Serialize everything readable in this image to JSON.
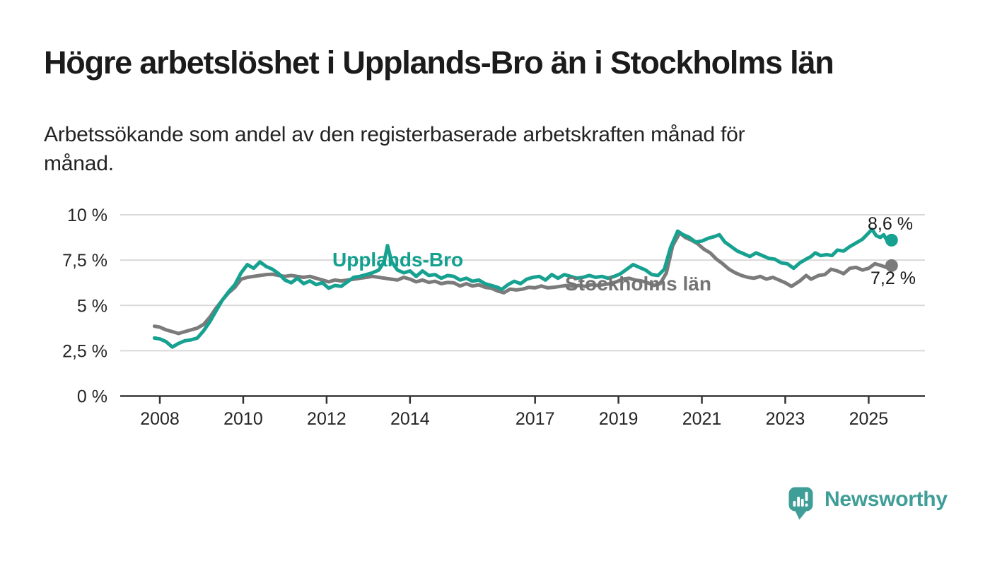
{
  "header": {
    "title": "Högre arbetslöshet i Upplands-Bro än i Stockholms län",
    "subtitle": "Arbetssökande som andel av den registerbaserade arbetskraften månad för månad.",
    "subtitle_lines": [
      "Arbetssökande som andel av den registerbaserade arbetskraften månad för",
      "månad."
    ]
  },
  "footer": {
    "brand": "Newsworthy"
  },
  "colors": {
    "teal": "#17a190",
    "gray": "#7b7b7b",
    "teal_label": "#13a08e",
    "gray_label": "#747474",
    "text": "#1b1b1b",
    "axis": "#333333",
    "tick_text": "#262626",
    "grid": "#d9d9d9",
    "logo": "#3f9e97"
  },
  "chart_data": {
    "type": "line",
    "title": "Högre arbetslöshet i Upplands-Bro än i Stockholms län",
    "xlabel": "",
    "ylabel": "",
    "unit": "%",
    "xlim": [
      2007.05,
      2026.35
    ],
    "ylim": [
      0,
      10
    ],
    "grid": "horizontal",
    "legend_position": "inline-labels",
    "x_ticks": [
      {
        "v": 2008,
        "label": "2008"
      },
      {
        "v": 2010,
        "label": "2010"
      },
      {
        "v": 2012,
        "label": "2012"
      },
      {
        "v": 2014,
        "label": "2014"
      },
      {
        "v": 2017,
        "label": "2017"
      },
      {
        "v": 2019,
        "label": "2019"
      },
      {
        "v": 2021,
        "label": "2021"
      },
      {
        "v": 2023,
        "label": "2023"
      },
      {
        "v": 2025,
        "label": "2025"
      }
    ],
    "y_ticks": [
      {
        "v": 10,
        "label": "10 %"
      },
      {
        "v": 7.5,
        "label": "7,5 %"
      },
      {
        "v": 5,
        "label": "5 %"
      },
      {
        "v": 2.5,
        "label": "2,5 %"
      },
      {
        "v": 0,
        "label": "0 %"
      }
    ],
    "series": [
      {
        "name": "Upplands-Bro",
        "color": "#17a190",
        "label_color": "#13a08e",
        "end_value": 8.6,
        "end_label": "8,6 %",
        "points": [
          [
            2007.87,
            3.2
          ],
          [
            2008.0,
            3.15
          ],
          [
            2008.15,
            3.0
          ],
          [
            2008.3,
            2.7
          ],
          [
            2008.45,
            2.9
          ],
          [
            2008.6,
            3.05
          ],
          [
            2008.75,
            3.1
          ],
          [
            2008.9,
            3.2
          ],
          [
            2009.05,
            3.6
          ],
          [
            2009.2,
            4.1
          ],
          [
            2009.35,
            4.7
          ],
          [
            2009.5,
            5.3
          ],
          [
            2009.65,
            5.75
          ],
          [
            2009.8,
            6.15
          ],
          [
            2009.95,
            6.8
          ],
          [
            2010.1,
            7.25
          ],
          [
            2010.25,
            7.05
          ],
          [
            2010.4,
            7.4
          ],
          [
            2010.55,
            7.15
          ],
          [
            2010.7,
            7.0
          ],
          [
            2010.85,
            6.75
          ],
          [
            2011.0,
            6.4
          ],
          [
            2011.15,
            6.25
          ],
          [
            2011.3,
            6.5
          ],
          [
            2011.45,
            6.2
          ],
          [
            2011.6,
            6.35
          ],
          [
            2011.75,
            6.15
          ],
          [
            2011.9,
            6.25
          ],
          [
            2012.05,
            5.95
          ],
          [
            2012.2,
            6.1
          ],
          [
            2012.35,
            6.05
          ],
          [
            2012.5,
            6.3
          ],
          [
            2012.65,
            6.55
          ],
          [
            2012.8,
            6.6
          ],
          [
            2012.95,
            6.7
          ],
          [
            2013.1,
            6.8
          ],
          [
            2013.25,
            6.95
          ],
          [
            2013.38,
            7.4
          ],
          [
            2013.46,
            8.3
          ],
          [
            2013.56,
            7.4
          ],
          [
            2013.7,
            6.95
          ],
          [
            2013.85,
            6.8
          ],
          [
            2014.0,
            6.9
          ],
          [
            2014.15,
            6.6
          ],
          [
            2014.3,
            6.9
          ],
          [
            2014.45,
            6.65
          ],
          [
            2014.6,
            6.7
          ],
          [
            2014.75,
            6.5
          ],
          [
            2014.9,
            6.65
          ],
          [
            2015.05,
            6.6
          ],
          [
            2015.2,
            6.4
          ],
          [
            2015.35,
            6.5
          ],
          [
            2015.5,
            6.33
          ],
          [
            2015.65,
            6.4
          ],
          [
            2015.8,
            6.2
          ],
          [
            2015.95,
            6.1
          ],
          [
            2016.1,
            6.0
          ],
          [
            2016.2,
            5.88
          ],
          [
            2016.35,
            6.15
          ],
          [
            2016.5,
            6.33
          ],
          [
            2016.65,
            6.2
          ],
          [
            2016.8,
            6.45
          ],
          [
            2016.95,
            6.55
          ],
          [
            2017.1,
            6.6
          ],
          [
            2017.25,
            6.4
          ],
          [
            2017.4,
            6.7
          ],
          [
            2017.55,
            6.5
          ],
          [
            2017.7,
            6.7
          ],
          [
            2017.85,
            6.6
          ],
          [
            2018.0,
            6.5
          ],
          [
            2018.15,
            6.55
          ],
          [
            2018.3,
            6.65
          ],
          [
            2018.45,
            6.55
          ],
          [
            2018.6,
            6.6
          ],
          [
            2018.75,
            6.5
          ],
          [
            2018.9,
            6.6
          ],
          [
            2019.05,
            6.75
          ],
          [
            2019.2,
            7.0
          ],
          [
            2019.35,
            7.25
          ],
          [
            2019.5,
            7.1
          ],
          [
            2019.65,
            6.95
          ],
          [
            2019.8,
            6.7
          ],
          [
            2019.95,
            6.65
          ],
          [
            2020.1,
            7.0
          ],
          [
            2020.25,
            8.2
          ],
          [
            2020.42,
            9.1
          ],
          [
            2020.55,
            8.9
          ],
          [
            2020.7,
            8.75
          ],
          [
            2020.85,
            8.5
          ],
          [
            2021.0,
            8.55
          ],
          [
            2021.15,
            8.7
          ],
          [
            2021.3,
            8.8
          ],
          [
            2021.42,
            8.9
          ],
          [
            2021.55,
            8.5
          ],
          [
            2021.7,
            8.25
          ],
          [
            2021.85,
            8.0
          ],
          [
            2022.0,
            7.85
          ],
          [
            2022.15,
            7.7
          ],
          [
            2022.3,
            7.9
          ],
          [
            2022.45,
            7.75
          ],
          [
            2022.6,
            7.6
          ],
          [
            2022.75,
            7.55
          ],
          [
            2022.9,
            7.35
          ],
          [
            2023.05,
            7.3
          ],
          [
            2023.2,
            7.05
          ],
          [
            2023.35,
            7.35
          ],
          [
            2023.5,
            7.55
          ],
          [
            2023.62,
            7.7
          ],
          [
            2023.72,
            7.9
          ],
          [
            2023.85,
            7.75
          ],
          [
            2024.0,
            7.8
          ],
          [
            2024.12,
            7.75
          ],
          [
            2024.25,
            8.05
          ],
          [
            2024.4,
            8.0
          ],
          [
            2024.55,
            8.25
          ],
          [
            2024.7,
            8.45
          ],
          [
            2024.85,
            8.65
          ],
          [
            2025.0,
            9.0
          ],
          [
            2025.08,
            9.2
          ],
          [
            2025.18,
            8.85
          ],
          [
            2025.28,
            8.75
          ],
          [
            2025.36,
            8.9
          ],
          [
            2025.45,
            8.55
          ],
          [
            2025.55,
            8.6
          ]
        ]
      },
      {
        "name": "Stockholms län",
        "color": "#7b7b7b",
        "label_color": "#747474",
        "end_value": 7.2,
        "end_label": "7,2 %",
        "points": [
          [
            2007.87,
            3.85
          ],
          [
            2008.0,
            3.8
          ],
          [
            2008.15,
            3.65
          ],
          [
            2008.3,
            3.55
          ],
          [
            2008.45,
            3.45
          ],
          [
            2008.6,
            3.55
          ],
          [
            2008.75,
            3.65
          ],
          [
            2008.9,
            3.75
          ],
          [
            2009.05,
            3.95
          ],
          [
            2009.2,
            4.35
          ],
          [
            2009.35,
            4.85
          ],
          [
            2009.5,
            5.3
          ],
          [
            2009.65,
            5.7
          ],
          [
            2009.8,
            6.0
          ],
          [
            2009.95,
            6.45
          ],
          [
            2010.1,
            6.55
          ],
          [
            2010.25,
            6.6
          ],
          [
            2010.4,
            6.65
          ],
          [
            2010.55,
            6.7
          ],
          [
            2010.7,
            6.72
          ],
          [
            2010.85,
            6.65
          ],
          [
            2011.0,
            6.6
          ],
          [
            2011.15,
            6.65
          ],
          [
            2011.3,
            6.6
          ],
          [
            2011.45,
            6.55
          ],
          [
            2011.6,
            6.6
          ],
          [
            2011.75,
            6.5
          ],
          [
            2011.9,
            6.4
          ],
          [
            2012.05,
            6.3
          ],
          [
            2012.2,
            6.4
          ],
          [
            2012.35,
            6.35
          ],
          [
            2012.5,
            6.4
          ],
          [
            2012.65,
            6.45
          ],
          [
            2012.8,
            6.5
          ],
          [
            2012.95,
            6.55
          ],
          [
            2013.1,
            6.6
          ],
          [
            2013.25,
            6.55
          ],
          [
            2013.4,
            6.5
          ],
          [
            2013.55,
            6.45
          ],
          [
            2013.7,
            6.4
          ],
          [
            2013.85,
            6.55
          ],
          [
            2014.0,
            6.45
          ],
          [
            2014.15,
            6.3
          ],
          [
            2014.3,
            6.4
          ],
          [
            2014.45,
            6.27
          ],
          [
            2014.6,
            6.33
          ],
          [
            2014.75,
            6.2
          ],
          [
            2014.9,
            6.27
          ],
          [
            2015.05,
            6.25
          ],
          [
            2015.2,
            6.07
          ],
          [
            2015.35,
            6.2
          ],
          [
            2015.5,
            6.07
          ],
          [
            2015.65,
            6.14
          ],
          [
            2015.8,
            6.0
          ],
          [
            2015.95,
            5.95
          ],
          [
            2016.1,
            5.8
          ],
          [
            2016.25,
            5.7
          ],
          [
            2016.4,
            5.9
          ],
          [
            2016.55,
            5.85
          ],
          [
            2016.7,
            5.9
          ],
          [
            2016.85,
            6.0
          ],
          [
            2017.0,
            5.97
          ],
          [
            2017.15,
            6.07
          ],
          [
            2017.3,
            5.97
          ],
          [
            2017.45,
            6.0
          ],
          [
            2017.6,
            6.05
          ],
          [
            2017.75,
            6.1
          ],
          [
            2017.9,
            6.05
          ],
          [
            2018.05,
            6.1
          ],
          [
            2018.2,
            6.05
          ],
          [
            2018.35,
            6.15
          ],
          [
            2018.5,
            6.1
          ],
          [
            2018.65,
            6.15
          ],
          [
            2018.8,
            6.2
          ],
          [
            2018.95,
            6.3
          ],
          [
            2019.1,
            6.45
          ],
          [
            2019.25,
            6.5
          ],
          [
            2019.4,
            6.4
          ],
          [
            2019.55,
            6.35
          ],
          [
            2019.7,
            6.25
          ],
          [
            2019.85,
            6.1
          ],
          [
            2020.0,
            6.2
          ],
          [
            2020.15,
            6.8
          ],
          [
            2020.3,
            8.3
          ],
          [
            2020.47,
            9.0
          ],
          [
            2020.6,
            8.75
          ],
          [
            2020.75,
            8.6
          ],
          [
            2020.9,
            8.4
          ],
          [
            2021.05,
            8.1
          ],
          [
            2021.2,
            7.9
          ],
          [
            2021.35,
            7.55
          ],
          [
            2021.5,
            7.3
          ],
          [
            2021.65,
            7.0
          ],
          [
            2021.8,
            6.8
          ],
          [
            2021.95,
            6.65
          ],
          [
            2022.1,
            6.55
          ],
          [
            2022.25,
            6.5
          ],
          [
            2022.4,
            6.6
          ],
          [
            2022.55,
            6.45
          ],
          [
            2022.7,
            6.55
          ],
          [
            2022.85,
            6.4
          ],
          [
            2023.0,
            6.25
          ],
          [
            2023.15,
            6.05
          ],
          [
            2023.35,
            6.35
          ],
          [
            2023.5,
            6.65
          ],
          [
            2023.62,
            6.45
          ],
          [
            2023.8,
            6.65
          ],
          [
            2023.95,
            6.7
          ],
          [
            2024.1,
            7.0
          ],
          [
            2024.25,
            6.9
          ],
          [
            2024.4,
            6.75
          ],
          [
            2024.55,
            7.05
          ],
          [
            2024.7,
            7.1
          ],
          [
            2024.85,
            6.95
          ],
          [
            2025.0,
            7.05
          ],
          [
            2025.15,
            7.3
          ],
          [
            2025.3,
            7.2
          ],
          [
            2025.42,
            7.1
          ],
          [
            2025.55,
            7.2
          ]
        ]
      }
    ]
  }
}
